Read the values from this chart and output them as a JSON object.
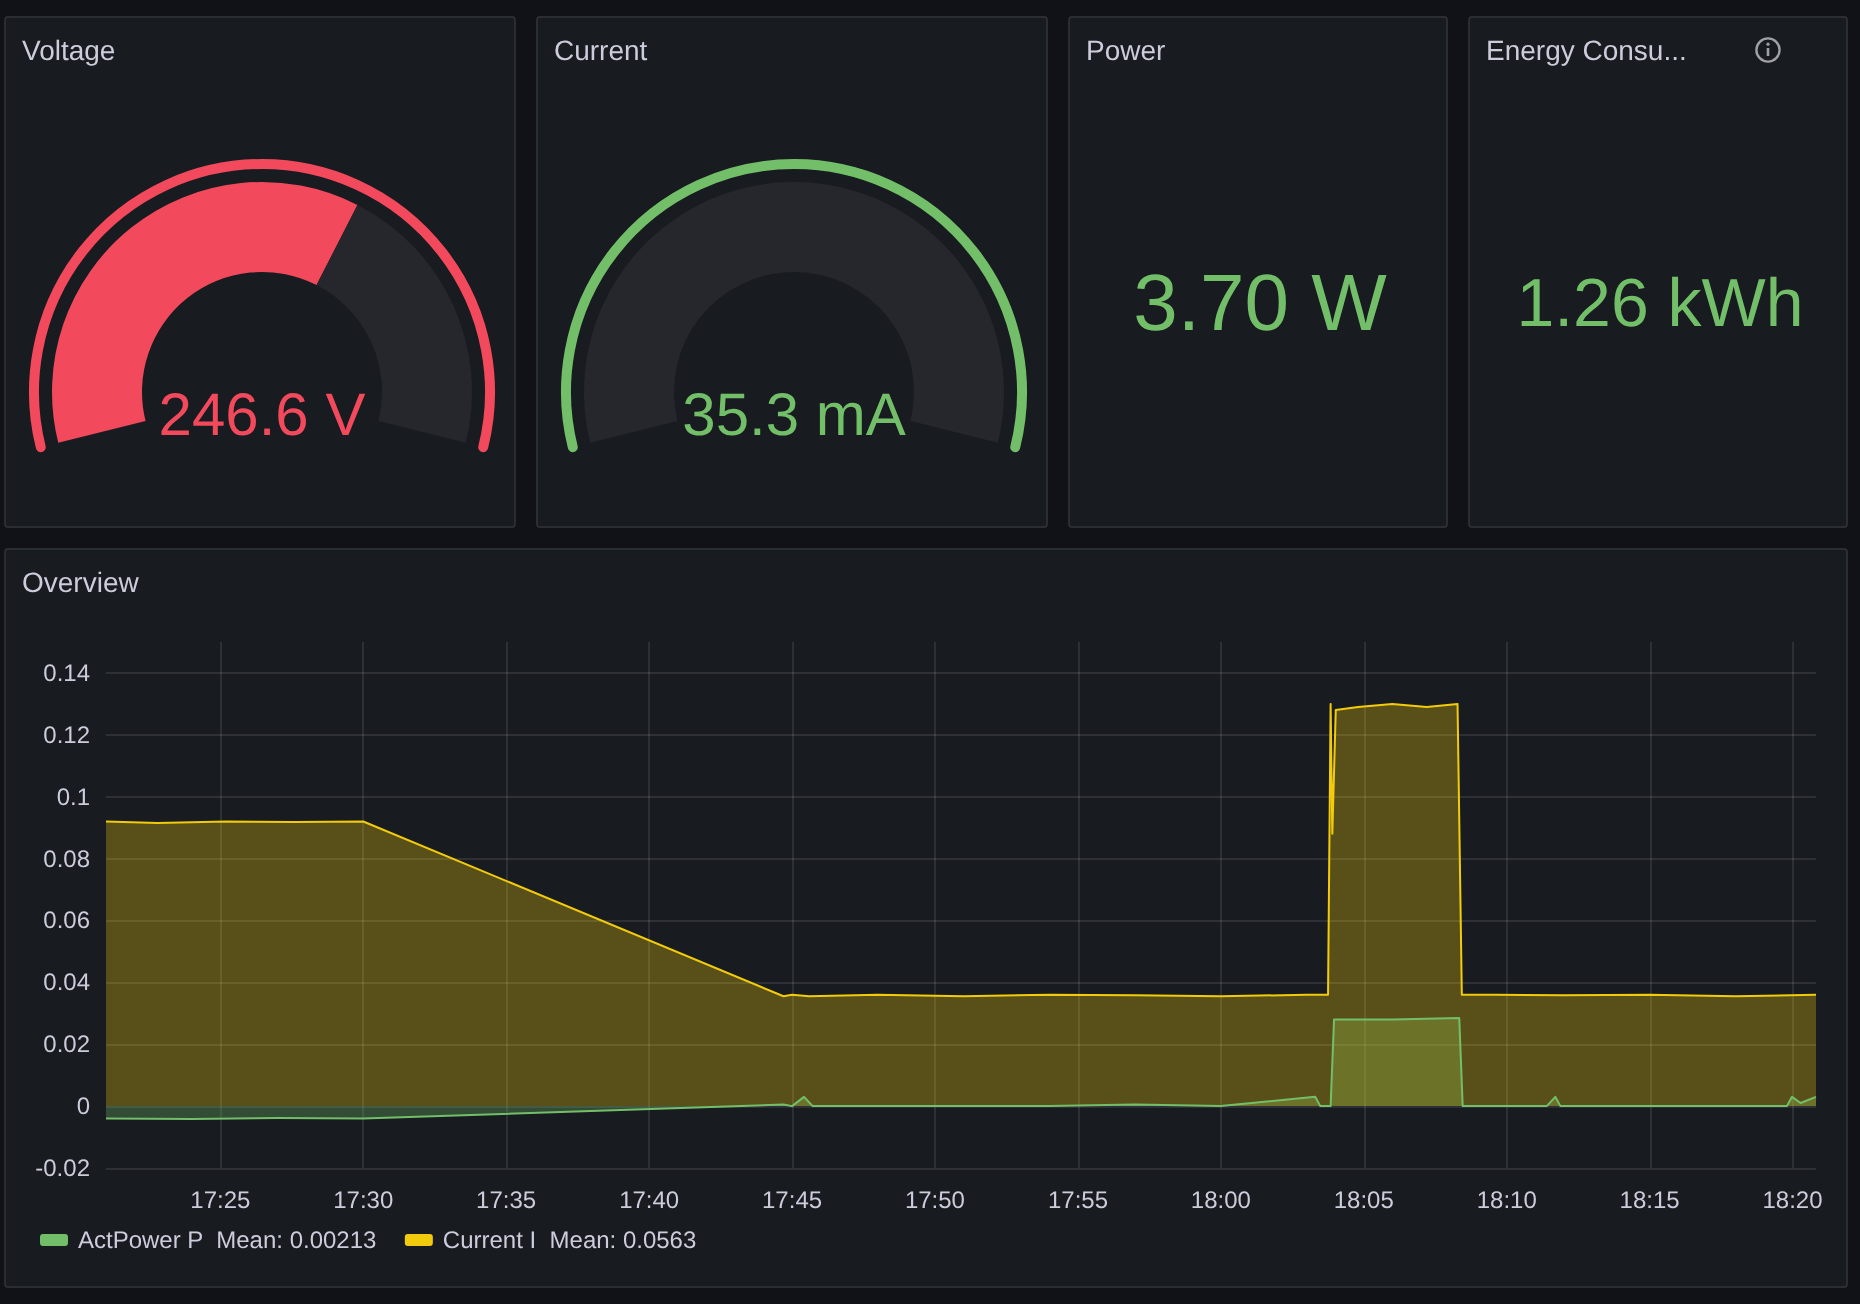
{
  "chart_data": [
    {
      "type": "donut",
      "title": "Voltage",
      "categories": [
        null,
        null
      ],
      "values": [
        63,
        37
      ],
      "colors": [
        "#f2495c",
        "#26272c"
      ],
      "color": "#f2495c",
      "annotations": [
        "246.6 V"
      ]
    },
    {
      "type": "pie",
      "title": "Current",
      "categories": [
        null,
        null
      ],
      "values": [
        0,
        100
      ],
      "colors": [
        "#73bf69",
        "#26272c"
      ],
      "color": "#73bf69",
      "annotations": [
        "35.3 mA"
      ]
    },
    {
      "type": "other",
      "title": "Power",
      "color": "#73bf69",
      "annotations": [
        "3.70 W"
      ]
    },
    {
      "type": "other",
      "title": "Energy Consu...",
      "color": "#73bf69",
      "annotations": [
        "1.26 kWh"
      ]
    },
    {
      "type": "area",
      "title": "Overview",
      "xlim": [
        17.35,
        18.347
      ],
      "ylim": [
        -0.02,
        0.15
      ],
      "xticks": [
        {
          "value": 17.4167,
          "label": "17:25"
        },
        {
          "value": 17.5,
          "label": "17:30"
        },
        {
          "value": 17.5833,
          "label": "17:35"
        },
        {
          "value": 17.6667,
          "label": "17:40"
        },
        {
          "value": 17.75,
          "label": "17:45"
        },
        {
          "value": 17.8333,
          "label": "17:50"
        },
        {
          "value": 17.9167,
          "label": "17:55"
        },
        {
          "value": 18,
          "label": "18:00"
        },
        {
          "value": 18.0833,
          "label": "18:05"
        },
        {
          "value": 18.1667,
          "label": "18:10"
        },
        {
          "value": 18.25,
          "label": "18:15"
        },
        {
          "value": 18.3333,
          "label": "18:20"
        }
      ],
      "yticks": [
        -0.02,
        0,
        0.02,
        0.04,
        0.06,
        0.08,
        0.1,
        0.12,
        0.14
      ],
      "grid": true,
      "legend": "bottom left",
      "series": [
        {
          "name": "ActPower P  Mean: 0.00213",
          "color": "#73bf69",
          "x": [
            17.35,
            17.4,
            17.45,
            17.5,
            17.745,
            17.75,
            17.757,
            17.762,
            17.8,
            17.9,
            17.95,
            18.0,
            18.055,
            18.058,
            18.064,
            18.066,
            18.1,
            18.139,
            18.141,
            18.19,
            18.195,
            18.198,
            18.33,
            18.333,
            18.338,
            18.347
          ],
          "values": [
            -0.004,
            -0.0042,
            -0.0038,
            -0.004,
            0.0005,
            0,
            0.003,
            0,
            0,
            0,
            0.0005,
            0,
            0.003,
            0,
            0,
            0.028,
            0.028,
            0.0285,
            0,
            0,
            0.003,
            0,
            0,
            0.003,
            0.001,
            0.003
          ]
        },
        {
          "name": "Current I  Mean: 0.0563",
          "color": "#f2cc0c",
          "x": [
            17.35,
            17.38,
            17.42,
            17.46,
            17.5,
            17.745,
            17.75,
            17.76,
            17.8,
            17.85,
            17.9,
            17.95,
            18.0,
            18.05,
            18.0625,
            18.064,
            18.065,
            18.067,
            18.08,
            18.1,
            18.12,
            18.138,
            18.1405,
            18.16,
            18.2,
            18.25,
            18.3,
            18.347
          ],
          "values": [
            0.092,
            0.0915,
            0.092,
            0.0918,
            0.092,
            0.0355,
            0.036,
            0.0355,
            0.036,
            0.0355,
            0.036,
            0.0358,
            0.0355,
            0.036,
            0.036,
            0.13,
            0.088,
            0.128,
            0.129,
            0.13,
            0.129,
            0.13,
            0.036,
            0.036,
            0.0358,
            0.036,
            0.0355,
            0.036
          ]
        }
      ]
    }
  ]
}
